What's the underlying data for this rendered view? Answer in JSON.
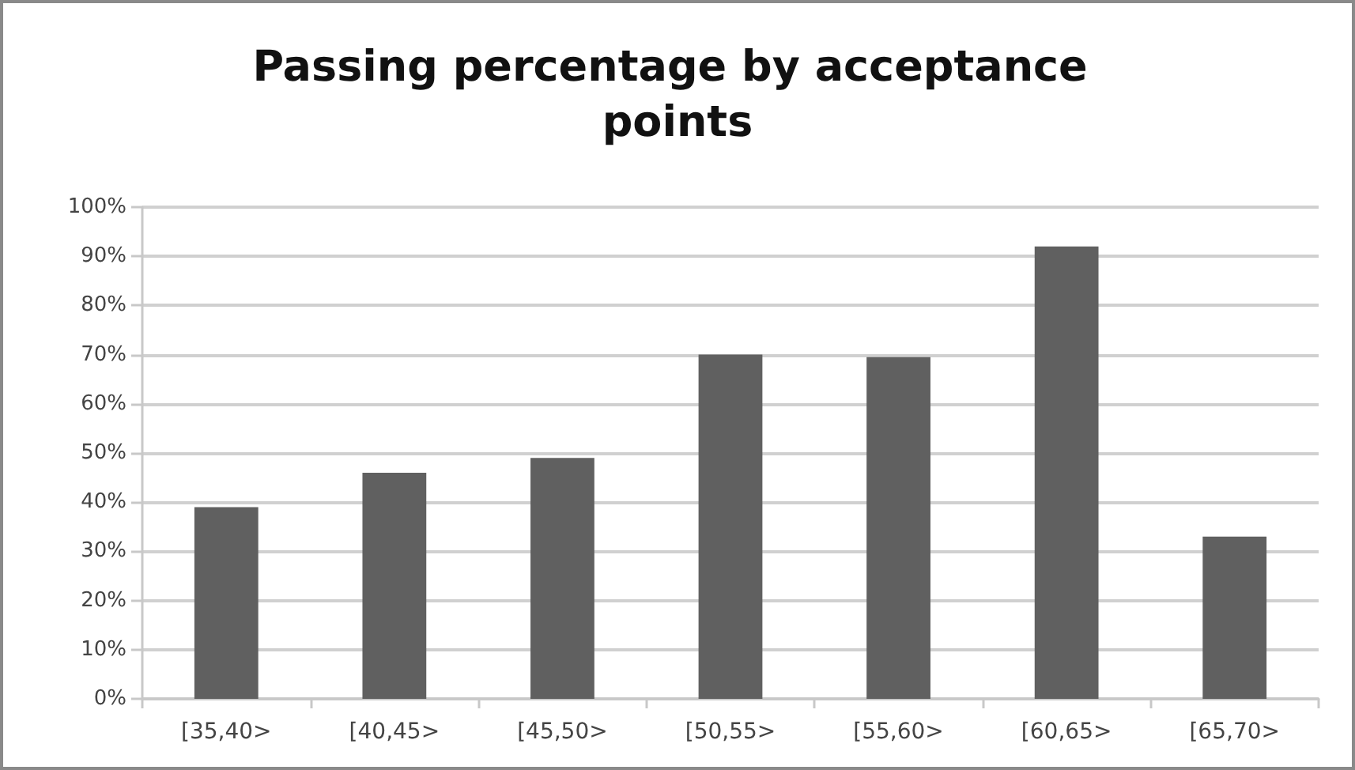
{
  "chart_data": {
    "type": "bar",
    "title": "Passing percentage by acceptance points",
    "categories": [
      "[35,40>",
      "[40,45>",
      "[45,50>",
      "[50,55>",
      "[55,60>",
      "[60,65>",
      "[65,70>"
    ],
    "values": [
      39,
      46,
      49,
      70,
      69.5,
      92,
      33
    ],
    "color": "#606060",
    "ylim": [
      0,
      100
    ],
    "yticks": [
      {
        "value": 0,
        "label": "0%"
      },
      {
        "value": 10,
        "label": "10%"
      },
      {
        "value": 20,
        "label": "20%"
      },
      {
        "value": 30,
        "label": "30%"
      },
      {
        "value": 40,
        "label": "40%"
      },
      {
        "value": 50,
        "label": "50%"
      },
      {
        "value": 60,
        "label": "60%"
      },
      {
        "value": 70,
        "label": "70%"
      },
      {
        "value": 80,
        "label": "80%"
      },
      {
        "value": 90,
        "label": "90%"
      },
      {
        "value": 100,
        "label": "100%"
      }
    ],
    "grid": "y"
  }
}
